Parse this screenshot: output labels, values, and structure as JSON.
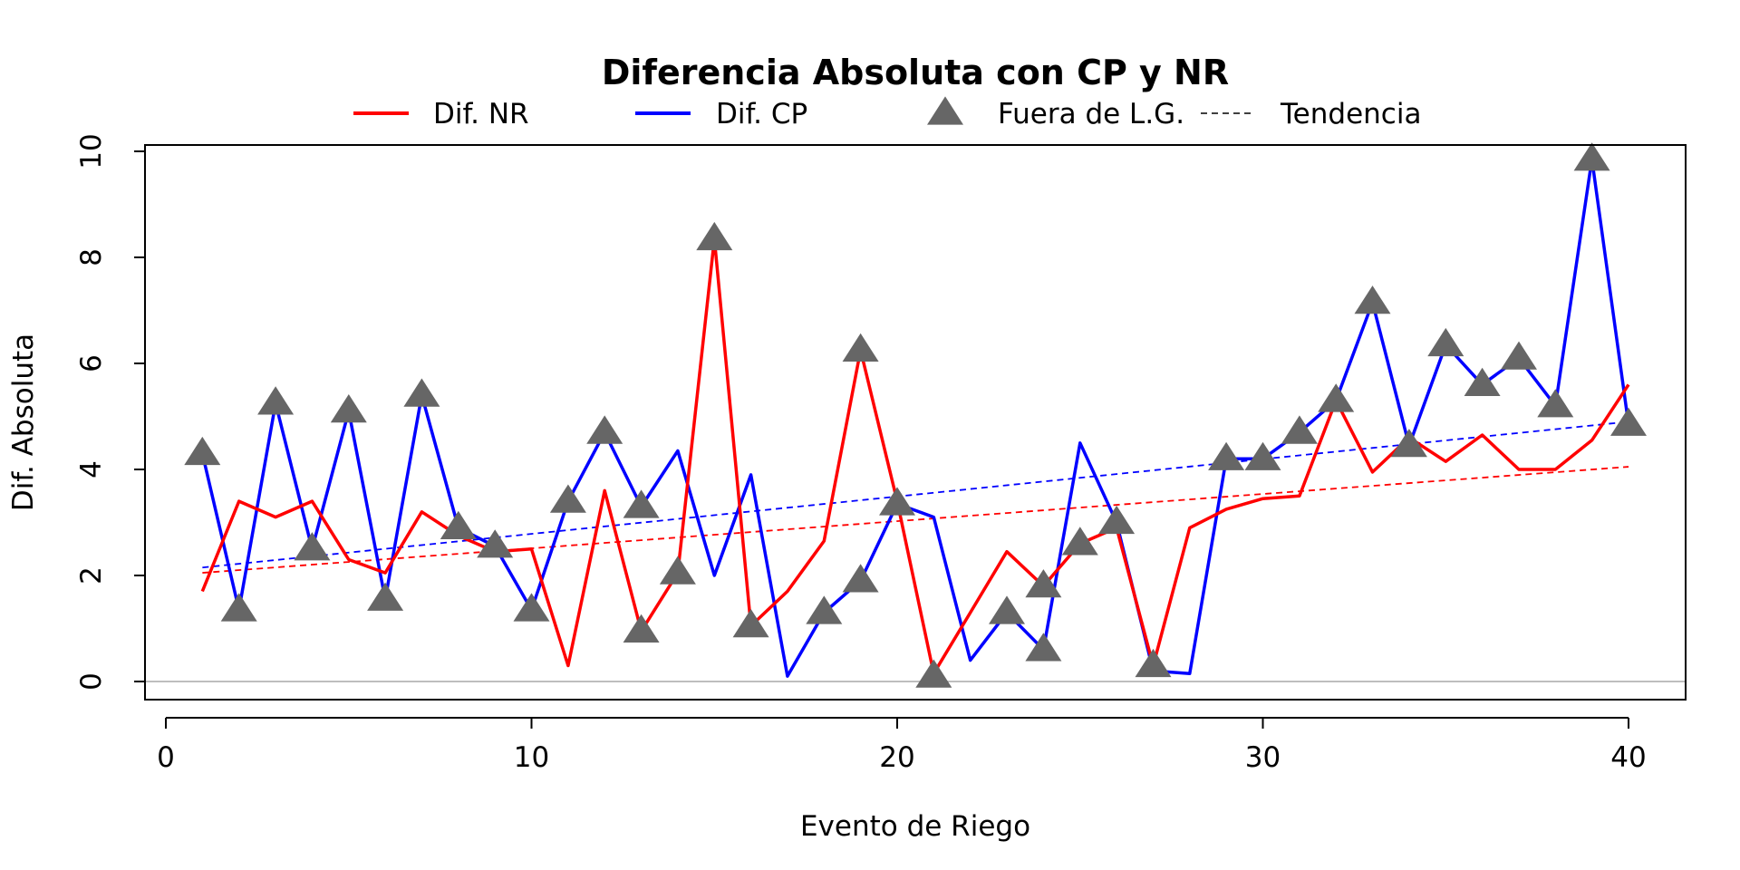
{
  "chart_data": {
    "type": "line",
    "title": "Diferencia Absoluta con CP y NR",
    "xlabel": "Evento de Riego",
    "ylabel": "Dif. Absoluta",
    "xlim": [
      0,
      40
    ],
    "ylim": [
      0,
      10
    ],
    "x_ticks": [
      0,
      10,
      20,
      30,
      40
    ],
    "y_ticks": [
      0,
      2,
      4,
      6,
      8,
      10
    ],
    "x": [
      1,
      2,
      3,
      4,
      5,
      6,
      7,
      8,
      9,
      10,
      11,
      12,
      13,
      14,
      15,
      16,
      17,
      18,
      19,
      20,
      21,
      22,
      23,
      24,
      25,
      26,
      27,
      28,
      29,
      30,
      31,
      32,
      33,
      34,
      35,
      36,
      37,
      38,
      39,
      40
    ],
    "series": [
      {
        "name": "Dif. NR",
        "color": "#ff0000",
        "values": [
          1.7,
          3.4,
          3.1,
          3.4,
          2.3,
          2.05,
          3.2,
          2.75,
          2.45,
          2.5,
          0.3,
          3.6,
          0.95,
          2.05,
          8.35,
          1.05,
          1.7,
          2.65,
          6.25,
          3.4,
          0.15,
          1.3,
          2.45,
          1.8,
          2.6,
          2.9,
          0.3,
          2.9,
          3.25,
          3.45,
          3.5,
          5.3,
          3.95,
          4.6,
          4.15,
          4.65,
          4.0,
          4.0,
          4.55,
          5.6
        ]
      },
      {
        "name": "Dif. CP",
        "color": "#0000ff",
        "values": [
          4.3,
          1.35,
          5.25,
          2.5,
          5.1,
          1.55,
          5.4,
          2.9,
          2.55,
          1.35,
          3.4,
          4.7,
          3.3,
          4.35,
          2.0,
          3.9,
          0.1,
          1.3,
          1.9,
          3.35,
          3.1,
          0.4,
          1.3,
          0.6,
          4.5,
          3.0,
          0.2,
          0.15,
          4.2,
          4.2,
          4.7,
          5.3,
          7.15,
          4.45,
          6.35,
          5.6,
          6.1,
          5.2,
          9.85,
          4.85
        ]
      }
    ],
    "outliers": {
      "name": "Fuera de L.G.",
      "color": "#666666",
      "points": [
        {
          "x": 1,
          "y": 4.3
        },
        {
          "x": 2,
          "y": 1.35
        },
        {
          "x": 3,
          "y": 5.25
        },
        {
          "x": 4,
          "y": 2.5
        },
        {
          "x": 5,
          "y": 5.1
        },
        {
          "x": 6,
          "y": 1.55
        },
        {
          "x": 7,
          "y": 5.4
        },
        {
          "x": 8,
          "y": 2.9
        },
        {
          "x": 9,
          "y": 2.55
        },
        {
          "x": 10,
          "y": 1.35
        },
        {
          "x": 11,
          "y": 3.4
        },
        {
          "x": 12,
          "y": 4.7
        },
        {
          "x": 13,
          "y": 0.95
        },
        {
          "x": 13,
          "y": 3.3
        },
        {
          "x": 14,
          "y": 2.05
        },
        {
          "x": 15,
          "y": 8.35
        },
        {
          "x": 16,
          "y": 1.05
        },
        {
          "x": 18,
          "y": 1.3
        },
        {
          "x": 19,
          "y": 1.9
        },
        {
          "x": 19,
          "y": 6.25
        },
        {
          "x": 20,
          "y": 3.35
        },
        {
          "x": 21,
          "y": 0.1
        },
        {
          "x": 23,
          "y": 1.3
        },
        {
          "x": 24,
          "y": 1.8
        },
        {
          "x": 24,
          "y": 0.6
        },
        {
          "x": 25,
          "y": 2.6
        },
        {
          "x": 26,
          "y": 3.0
        },
        {
          "x": 27,
          "y": 0.3
        },
        {
          "x": 29,
          "y": 4.2
        },
        {
          "x": 30,
          "y": 4.2
        },
        {
          "x": 31,
          "y": 4.7
        },
        {
          "x": 32,
          "y": 5.3
        },
        {
          "x": 33,
          "y": 7.15
        },
        {
          "x": 34,
          "y": 4.45
        },
        {
          "x": 35,
          "y": 6.35
        },
        {
          "x": 36,
          "y": 5.6
        },
        {
          "x": 37,
          "y": 6.1
        },
        {
          "x": 38,
          "y": 5.2
        },
        {
          "x": 39,
          "y": 9.85
        },
        {
          "x": 40,
          "y": 4.85
        }
      ]
    },
    "trend_lines": [
      {
        "series": "Dif. NR",
        "color": "#ff0000",
        "x": [
          1,
          40
        ],
        "y": [
          2.05,
          4.05
        ]
      },
      {
        "series": "Dif. CP",
        "color": "#0000ff",
        "x": [
          1,
          40
        ],
        "y": [
          2.15,
          4.9
        ]
      }
    ],
    "reference_line": {
      "y": 0,
      "color": "#bebebe"
    },
    "legend": {
      "placement": "top",
      "items": [
        {
          "label": "Dif. NR",
          "kind": "line",
          "color": "#ff0000"
        },
        {
          "label": "Dif. CP",
          "kind": "line",
          "color": "#0000ff"
        },
        {
          "label": "Fuera de L.G.",
          "kind": "triangle",
          "color": "#666666"
        },
        {
          "label": "Tendencia",
          "kind": "dashed",
          "color": "#000000"
        }
      ]
    },
    "grid": false
  }
}
